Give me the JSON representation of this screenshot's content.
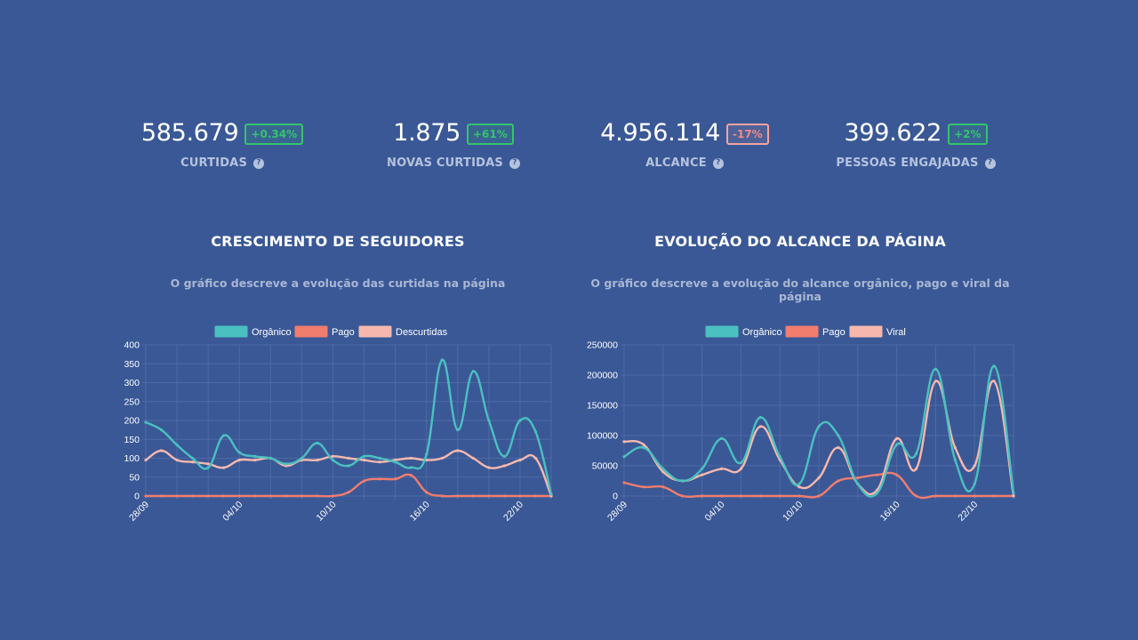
{
  "kpis": [
    {
      "value": "585.679",
      "badge": "+0.34%",
      "trend": "pos",
      "label": "CURTIDAS"
    },
    {
      "value": "1.875",
      "badge": "+61%",
      "trend": "pos",
      "label": "NOVAS CURTIDAS"
    },
    {
      "value": "4.956.114",
      "badge": "-17%",
      "trend": "neg",
      "label": "ALCANCE"
    },
    {
      "value": "399.622",
      "badge": "+2%",
      "trend": "pos",
      "label": "PESSOAS ENGAJADAS"
    }
  ],
  "help_icon_glyph": "?",
  "panels": [
    {
      "title": "CRESCIMENTO DE SEGUIDORES",
      "subtitle": "O gráfico descreve a evolução das curtidas na página"
    },
    {
      "title": "EVOLUÇÃO DO ALCANCE DA PÁGINA",
      "subtitle": "O gráfico descreve a evolução do alcance orgânico, pago e viral da página"
    }
  ],
  "colors": {
    "background": "#3a5896",
    "organico": "#4bc0c0",
    "pago": "#f07d6e",
    "third": "#f6b8ae",
    "grid": "#4e6aa5",
    "tick": "#ffffff"
  },
  "chart_data": [
    {
      "type": "line",
      "title": "CRESCIMENTO DE SEGUIDORES",
      "ylim": [
        0,
        400
      ],
      "yticks": [
        0,
        50,
        100,
        150,
        200,
        250,
        300,
        350,
        400
      ],
      "x_tick_labels": [
        "28/09",
        "04/10",
        "10/10",
        "16/10",
        "22/10"
      ],
      "x_tick_index": [
        0,
        6,
        12,
        18,
        24
      ],
      "legend_position": "top",
      "series": [
        {
          "name": "Orgânico",
          "color": "#4bc0c0",
          "values": [
            195,
            175,
            135,
            100,
            75,
            160,
            115,
            105,
            100,
            85,
            100,
            140,
            95,
            80,
            105,
            100,
            90,
            75,
            110,
            360,
            175,
            330,
            200,
            105,
            200,
            170,
            5
          ]
        },
        {
          "name": "Pago",
          "color": "#f07d6e",
          "values": [
            0,
            0,
            0,
            0,
            0,
            0,
            0,
            0,
            0,
            0,
            0,
            0,
            0,
            10,
            40,
            45,
            45,
            55,
            10,
            0,
            0,
            0,
            0,
            0,
            0,
            0,
            0
          ]
        },
        {
          "name": "Descurtidas",
          "color": "#f6b8ae",
          "values": [
            95,
            120,
            95,
            90,
            85,
            75,
            95,
            95,
            100,
            80,
            95,
            95,
            105,
            100,
            95,
            90,
            95,
            100,
            95,
            100,
            120,
            100,
            75,
            80,
            95,
            100,
            0
          ]
        }
      ]
    },
    {
      "type": "line",
      "title": "EVOLUÇÃO DO ALCANCE DA PÁGINA",
      "ylim": [
        0,
        250000
      ],
      "yticks": [
        0,
        50000,
        100000,
        150000,
        200000,
        250000
      ],
      "x_tick_labels": [
        "28/09",
        "04/10",
        "10/10",
        "16/10",
        "22/10"
      ],
      "x_tick_index": [
        0,
        6,
        12,
        18,
        24
      ],
      "legend_position": "top",
      "series": [
        {
          "name": "Orgânico",
          "color": "#4bc0c0",
          "values": [
            65000,
            80000,
            45000,
            25000,
            45000,
            95000,
            55000,
            130000,
            65000,
            20000,
            115000,
            100000,
            20000,
            5000,
            85000,
            70000,
            210000,
            60000,
            20000,
            215000,
            5000
          ]
        },
        {
          "name": "Pago",
          "color": "#f07d6e",
          "values": [
            22000,
            15000,
            15000,
            0,
            0,
            0,
            0,
            0,
            0,
            0,
            0,
            25000,
            30000,
            35000,
            35000,
            0,
            0,
            0,
            0,
            0,
            0
          ]
        },
        {
          "name": "Viral",
          "color": "#f6b8ae",
          "values": [
            90000,
            85000,
            40000,
            25000,
            35000,
            45000,
            45000,
            115000,
            60000,
            15000,
            30000,
            80000,
            20000,
            10000,
            95000,
            45000,
            190000,
            80000,
            50000,
            190000,
            0
          ]
        }
      ]
    }
  ]
}
